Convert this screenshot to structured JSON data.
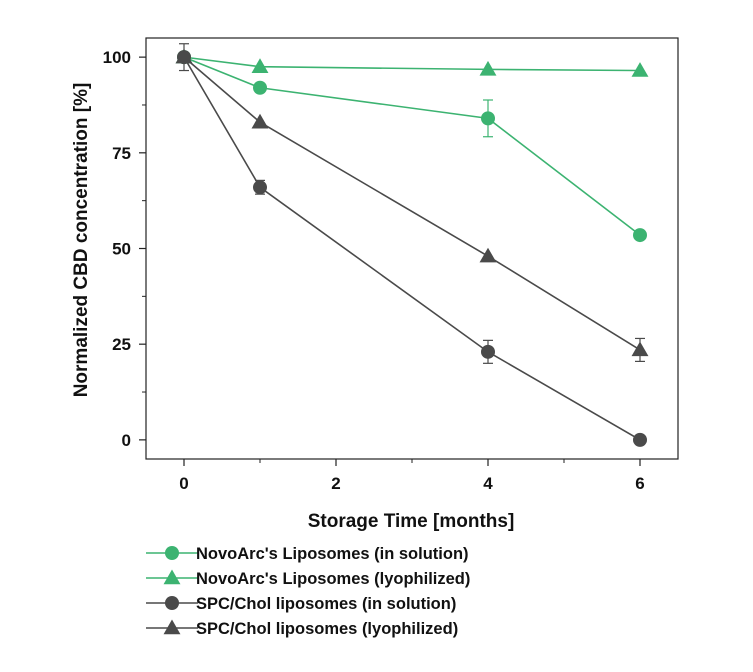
{
  "chart_data": {
    "type": "line",
    "xlabel": "Storage Time [months]",
    "ylabel": "Normalized CBD concentration [%]",
    "xlim": [
      -0.5,
      6.5
    ],
    "ylim": [
      -5,
      105
    ],
    "xticks": [
      0,
      2,
      4,
      6
    ],
    "yticks": [
      0,
      25,
      50,
      75,
      100
    ],
    "grid": false,
    "legend_position": "bottom",
    "series": [
      {
        "name": "NovoArc's Liposomes (in solution)",
        "marker": "circle",
        "color": "#3cb371",
        "x": [
          0,
          1,
          4,
          6
        ],
        "y": [
          100,
          92,
          84,
          53.5
        ],
        "err": [
          0,
          0,
          4.8,
          0
        ]
      },
      {
        "name": "NovoArc's Liposomes (lyophilized)",
        "marker": "triangle",
        "color": "#3cb371",
        "x": [
          0,
          1,
          4,
          6
        ],
        "y": [
          100,
          97.5,
          96.8,
          96.5
        ],
        "err": [
          0,
          0,
          0,
          0
        ]
      },
      {
        "name": "SPC/Chol liposomes (in solution)",
        "marker": "circle",
        "color": "#4a4a4a",
        "x": [
          0,
          1,
          4,
          6
        ],
        "y": [
          100,
          66,
          23,
          0
        ],
        "err": [
          3.5,
          1.8,
          3,
          0
        ]
      },
      {
        "name": "SPC/Chol liposomes (lyophilized)",
        "marker": "triangle",
        "color": "#4a4a4a",
        "x": [
          0,
          1,
          4,
          6
        ],
        "y": [
          100,
          83,
          48,
          23.5
        ],
        "err": [
          0,
          0,
          0,
          3
        ]
      }
    ]
  }
}
